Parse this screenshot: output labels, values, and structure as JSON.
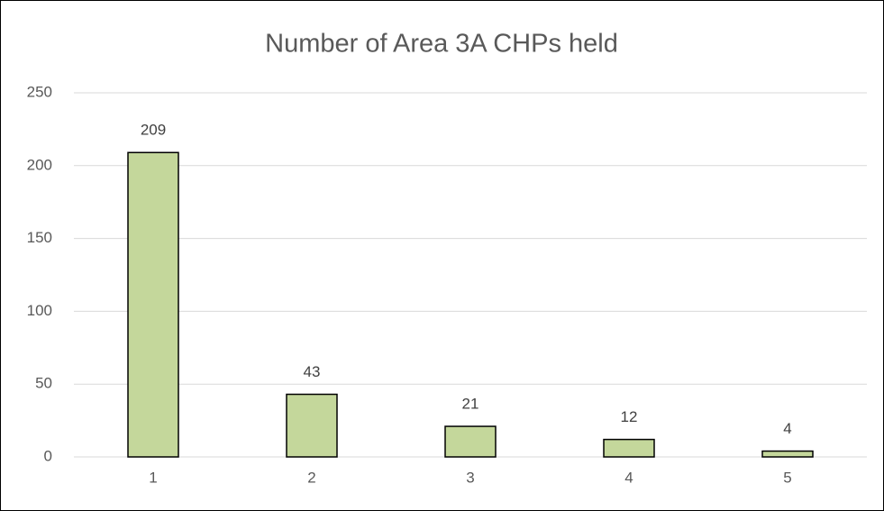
{
  "chart_data": {
    "type": "bar",
    "title": "Number of Area 3A CHPs held",
    "categories": [
      "1",
      "2",
      "3",
      "4",
      "5"
    ],
    "values": [
      209,
      43,
      21,
      12,
      4
    ],
    "color": "#c4d79b",
    "edge_color": "#000000",
    "ylim": [
      0,
      250
    ],
    "yticks": [
      0,
      50,
      100,
      150,
      200,
      250
    ],
    "grid": true
  }
}
